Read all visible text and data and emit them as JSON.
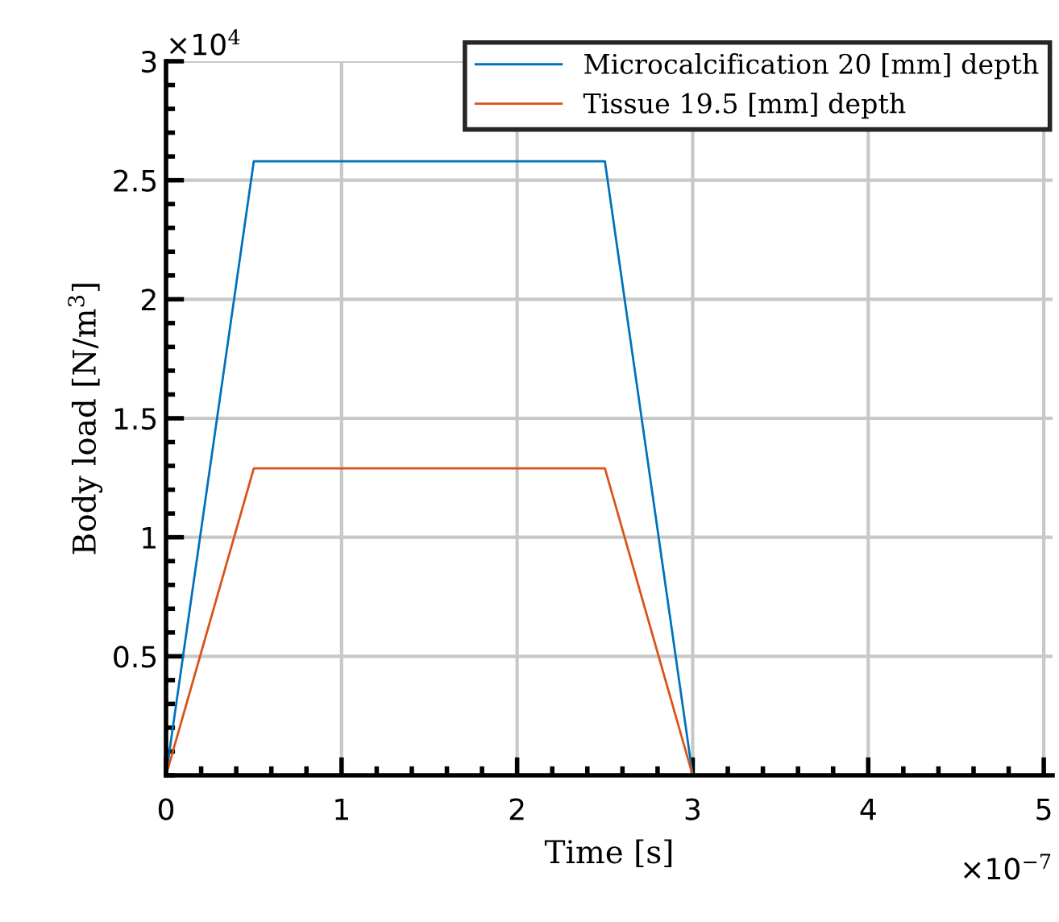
{
  "chart_data": {
    "type": "line",
    "xlabel": "Time [s]",
    "ylabel": "Body load [N/m$^{3}$]",
    "x": [
      0,
      0.5,
      2.5,
      3
    ],
    "series": [
      {
        "name": "Microcalcification 20 [mm] depth",
        "color": "#0072bd",
        "values": [
          0,
          2.58,
          2.58,
          0
        ]
      },
      {
        "name": "Tissue 19.5 [mm] depth",
        "color": "#d95319",
        "values": [
          0,
          1.29,
          1.29,
          0
        ]
      }
    ],
    "xlim": [
      0,
      5.05
    ],
    "ylim": [
      0,
      3
    ],
    "xticks": [
      0,
      1,
      2,
      3,
      4,
      5
    ],
    "yticks": [
      0.5,
      1,
      1.5,
      2,
      2.5,
      3
    ],
    "annotations": [
      "×10$^{4}$",
      "×10$^{−7}$"
    ],
    "grid": true,
    "legend": "top right",
    "marker": "none",
    "line_style": "solid"
  }
}
